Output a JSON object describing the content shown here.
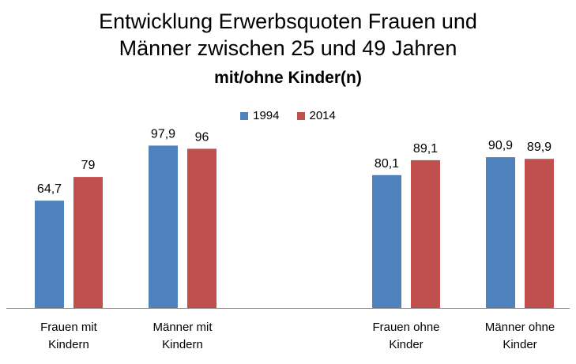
{
  "chart_data": {
    "type": "bar",
    "title_line1": "Entwicklung Erwerbsquoten Frauen und",
    "title_line2": "Männer zwischen 25 und 49 Jahren",
    "subtitle": "mit/ohne Kinder(n)",
    "categories": [
      [
        "Frauen mit",
        "Kindern"
      ],
      [
        "Männer mit",
        "Kindern"
      ],
      [
        "Frauen ohne",
        "Kinder"
      ],
      [
        "Männer ohne",
        "Kinder"
      ]
    ],
    "series": [
      {
        "name": "1994",
        "color": "#4F81BD",
        "values": [
          64.7,
          97.9,
          80.1,
          90.9
        ],
        "labels": [
          "64,7",
          "97,9",
          "80,1",
          "90,9"
        ]
      },
      {
        "name": "2014",
        "color": "#C0504D",
        "values": [
          79,
          96,
          89.1,
          89.9
        ],
        "labels": [
          "79",
          "96",
          "89,1",
          "89,9"
        ]
      }
    ],
    "ylim": [
      0,
      100
    ],
    "grid": false,
    "legend_position": "top"
  }
}
